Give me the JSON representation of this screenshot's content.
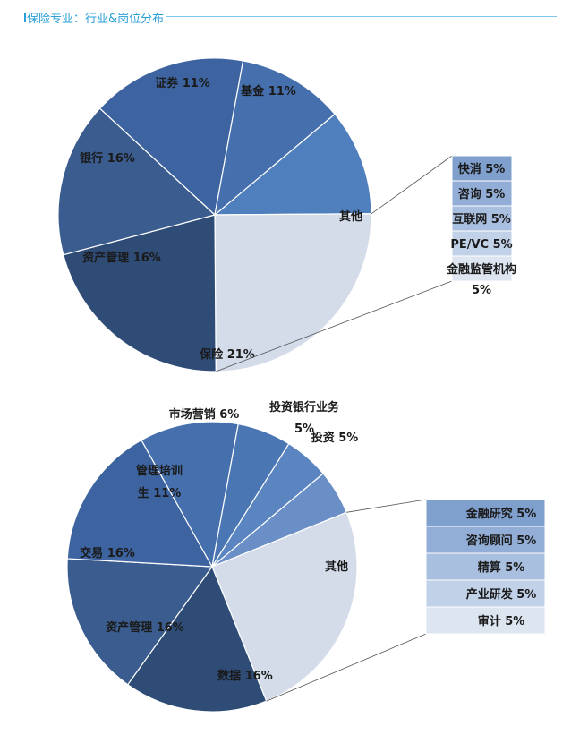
{
  "header": {
    "title": "保险专业：行业&岗位分布"
  },
  "chart_data": [
    {
      "type": "pie",
      "slices": [
        {
          "label": "基金 11%",
          "value": 11,
          "color": "#4f7fbd"
        },
        {
          "label": "其他",
          "value": 25,
          "color": "#d4dcea"
        },
        {
          "label": "保险 21%",
          "value": 21,
          "color": "#2f4c77"
        },
        {
          "label": "资产管理 16%",
          "value": 16,
          "color": "#3b5c8e"
        },
        {
          "label": "银行 16%",
          "value": 16,
          "color": "#3d64a0"
        },
        {
          "label": "证券 11%",
          "value": 11,
          "color": "#4670ad"
        }
      ],
      "breakdown": [
        {
          "label": "快消 5%",
          "value": 5,
          "color": "#7f9fcd"
        },
        {
          "label": "咨询 5%",
          "value": 5,
          "color": "#93aed6"
        },
        {
          "label": "互联网 5%",
          "value": 5,
          "color": "#a9bfdf"
        },
        {
          "label": "PE/VC 5%",
          "value": 5,
          "color": "#c1d1e8"
        },
        {
          "label": "金融监管机构",
          "label2": "5%",
          "value": 5,
          "color": "#dde5f1"
        }
      ]
    },
    {
      "type": "pie",
      "slices": [
        {
          "label": "投资 5%",
          "value": 5,
          "color": "#6a8fc7"
        },
        {
          "label": "其他",
          "value": 25,
          "color": "#d4dcea"
        },
        {
          "label": "数据 16%",
          "value": 16,
          "color": "#2f4c77"
        },
        {
          "label": "资产管理 16%",
          "value": 16,
          "color": "#3b5c8e"
        },
        {
          "label": "交易 16%",
          "value": 16,
          "color": "#3d64a0"
        },
        {
          "label": "管理培训",
          "label2": "生 11%",
          "value": 11,
          "color": "#4670ad"
        },
        {
          "label": "市场营销 6%",
          "value": 6,
          "color": "#4a77b3"
        },
        {
          "label": "投资银行业务",
          "label2": "5%",
          "value": 5,
          "color": "#5a85c0"
        }
      ],
      "breakdown": [
        {
          "label": "金融研究 5%",
          "value": 5,
          "color": "#7f9fcd"
        },
        {
          "label": "咨询顾问 5%",
          "value": 5,
          "color": "#93aed6"
        },
        {
          "label": "精算 5%",
          "value": 5,
          "color": "#a9bfdf"
        },
        {
          "label": "产业研发 5%",
          "value": 5,
          "color": "#c1d1e8"
        },
        {
          "label": "审计 5%",
          "value": 5,
          "color": "#dde5f1"
        }
      ]
    }
  ]
}
